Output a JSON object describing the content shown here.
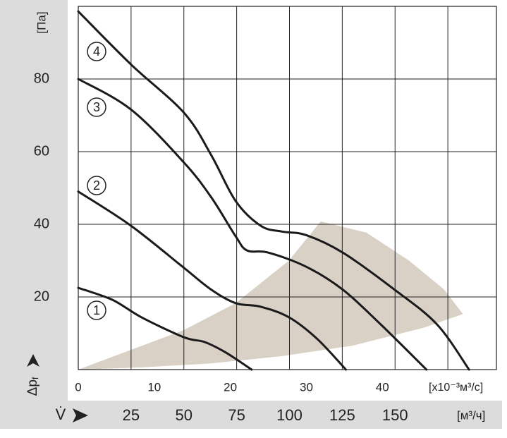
{
  "chart_data": {
    "type": "line",
    "y_unit": "[Па]",
    "y_symbol": "Δp",
    "y_symbol_sub": "f",
    "x_unit": "[x10⁻³м³/с]",
    "x2_symbol": "V̇",
    "x2_unit": "[м³/ч]",
    "xlim": [
      0,
      55
    ],
    "ylim": [
      0,
      100
    ],
    "x2lim": [
      0,
      198
    ],
    "xticks": [
      0,
      10,
      20,
      30,
      40
    ],
    "yticks": [
      20,
      40,
      60,
      80
    ],
    "x2ticks": [
      25,
      50,
      75,
      100,
      125,
      150,
      {
        "value": 175,
        "label": null
      }
    ],
    "grid": true,
    "zone": {
      "color": "#d9d0c6",
      "x": [
        0,
        13.9,
        20.7,
        27.7,
        31.9,
        37.9,
        43.5,
        48.1,
        50.6,
        45.4,
        36.1,
        26.8,
        17.5,
        8.3
      ],
      "y": [
        0,
        10.9,
        18.3,
        30,
        40.8,
        37.7,
        30,
        22.1,
        15.3,
        11.5,
        6.6,
        3.7,
        1.7,
        0.6
      ]
    },
    "series": [
      {
        "name": "1",
        "color": "#1a1a1a",
        "x": [
          0,
          4.5,
          8.3,
          13.9,
          16.6,
          19.4,
          22.8
        ],
        "values": [
          22.5,
          19.2,
          14.4,
          8.9,
          7.6,
          4.7,
          0
        ]
      },
      {
        "name": "2",
        "color": "#1a1a1a",
        "x": [
          0,
          6.94,
          13.9,
          17.5,
          20.7,
          24,
          27.7,
          31.4,
          35.2
        ],
        "values": [
          49,
          39.6,
          28,
          22,
          18.3,
          17.3,
          14.4,
          8.5,
          0
        ]
      },
      {
        "name": "3",
        "color": "#1a1a1a",
        "x": [
          0,
          6.94,
          13.9,
          17.5,
          20.7,
          22.2,
          25,
          30,
          34.8,
          39.8,
          45.8
        ],
        "values": [
          80,
          71.6,
          57,
          47.4,
          36.7,
          32.8,
          32.2,
          28.3,
          22,
          12.4,
          0
        ]
      },
      {
        "name": "4",
        "color": "#1a1a1a",
        "x": [
          0,
          6.94,
          13.9,
          17.5,
          20.7,
          24,
          26.8,
          30,
          34.8,
          41.6,
          47.2,
          51.4
        ],
        "values": [
          98.6,
          84,
          70.7,
          59,
          46.4,
          39.6,
          38,
          37,
          32.2,
          22,
          12.4,
          0
        ]
      }
    ]
  }
}
